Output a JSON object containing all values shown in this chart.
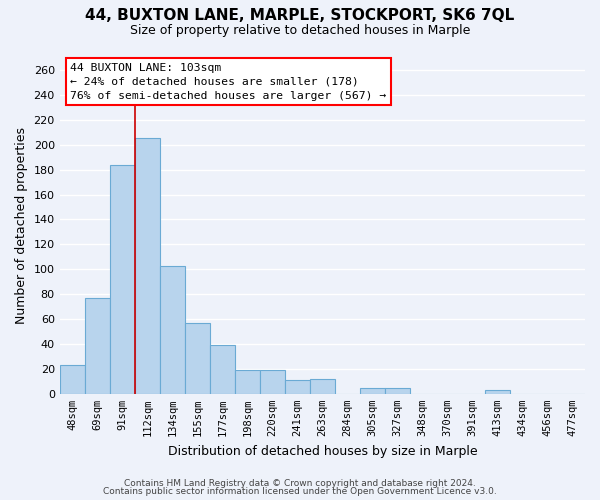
{
  "title": "44, BUXTON LANE, MARPLE, STOCKPORT, SK6 7QL",
  "subtitle": "Size of property relative to detached houses in Marple",
  "xlabel": "Distribution of detached houses by size in Marple",
  "ylabel": "Number of detached properties",
  "bar_color": "#b8d4ed",
  "bar_edge_color": "#6aaad4",
  "background_color": "#eef2fa",
  "grid_color": "white",
  "categories": [
    "48sqm",
    "69sqm",
    "91sqm",
    "112sqm",
    "134sqm",
    "155sqm",
    "177sqm",
    "198sqm",
    "220sqm",
    "241sqm",
    "263sqm",
    "284sqm",
    "305sqm",
    "327sqm",
    "348sqm",
    "370sqm",
    "391sqm",
    "413sqm",
    "434sqm",
    "456sqm",
    "477sqm"
  ],
  "values": [
    23,
    77,
    184,
    205,
    103,
    57,
    39,
    19,
    19,
    11,
    12,
    0,
    5,
    5,
    0,
    0,
    0,
    3,
    0,
    0,
    0
  ],
  "ylim": [
    0,
    270
  ],
  "yticks": [
    0,
    20,
    40,
    60,
    80,
    100,
    120,
    140,
    160,
    180,
    200,
    220,
    240,
    260
  ],
  "property_line_index": 3,
  "annotation_title": "44 BUXTON LANE: 103sqm",
  "annotation_line1": "← 24% of detached houses are smaller (178)",
  "annotation_line2": "76% of semi-detached houses are larger (567) →",
  "footer_line1": "Contains HM Land Registry data © Crown copyright and database right 2024.",
  "footer_line2": "Contains public sector information licensed under the Open Government Licence v3.0."
}
